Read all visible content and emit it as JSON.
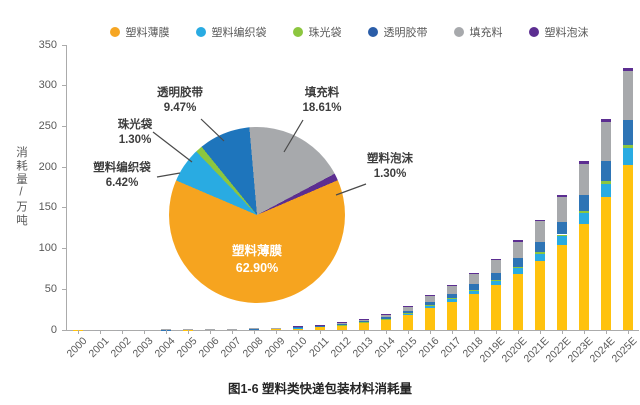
{
  "figure": {
    "caption": "图1-6 塑料类快递包装材料消耗量"
  },
  "legend": {
    "items": [
      {
        "label": "塑料薄膜",
        "color": "#F6A623"
      },
      {
        "label": "塑料编织袋",
        "color": "#29ABE2"
      },
      {
        "label": "珠光袋",
        "color": "#8CC63F"
      },
      {
        "label": "透明胶带",
        "color": "#2A5DA8"
      },
      {
        "label": "填充料",
        "color": "#A7A9AC"
      },
      {
        "label": "塑料泡沫",
        "color": "#5C2E91"
      }
    ]
  },
  "axes": {
    "y_title": "消耗量/万吨",
    "yticks": [
      0,
      50,
      100,
      150,
      200,
      250,
      300,
      350
    ]
  },
  "chart_data": [
    {
      "type": "bar",
      "stacked": true,
      "title": "塑料类快递包装材料消耗量",
      "xlabel": "",
      "ylabel": "消耗量/万吨",
      "ylim": [
        0,
        350
      ],
      "grid": false,
      "legend_position": "top",
      "categories": [
        "2000",
        "2001",
        "2002",
        "2003",
        "2004",
        "2005",
        "2006",
        "2007",
        "2008",
        "2009",
        "2010",
        "2011",
        "2012",
        "2013",
        "2014",
        "2015",
        "2016",
        "2017",
        "2018",
        "2019E",
        "2020E",
        "2021E",
        "2022E",
        "2023E",
        "2024E",
        "2025E"
      ],
      "series": [
        {
          "name": "塑料薄膜",
          "color": "#FFC20E",
          "values": [
            0.1,
            0.2,
            0.3,
            0.3,
            0.4,
            0.6,
            0.8,
            1.1,
            1.4,
            1.9,
            2.8,
            4.1,
            6.0,
            8.5,
            12.3,
            18.2,
            27.0,
            34.6,
            44.0,
            54.7,
            69.2,
            84.9,
            104.4,
            130.2,
            162.9,
            202.5
          ]
        },
        {
          "name": "塑料编织袋",
          "color": "#29ABE2",
          "values": [
            0.0,
            0.0,
            0.0,
            0.0,
            0.1,
            0.1,
            0.1,
            0.1,
            0.1,
            0.2,
            0.3,
            0.4,
            0.6,
            0.9,
            1.3,
            1.9,
            2.8,
            3.5,
            4.5,
            5.6,
            7.1,
            8.7,
            10.7,
            13.3,
            16.6,
            20.7
          ]
        },
        {
          "name": "珠光袋",
          "color": "#8CC63F",
          "values": [
            0.0,
            0.0,
            0.0,
            0.0,
            0.0,
            0.0,
            0.0,
            0.0,
            0.0,
            0.0,
            0.1,
            0.1,
            0.1,
            0.2,
            0.3,
            0.4,
            0.6,
            0.7,
            0.9,
            1.1,
            1.4,
            1.8,
            2.2,
            2.7,
            3.4,
            4.2
          ]
        },
        {
          "name": "透明胶带",
          "color": "#2E74B5",
          "values": [
            0.0,
            0.0,
            0.0,
            0.1,
            0.1,
            0.1,
            0.1,
            0.2,
            0.2,
            0.3,
            0.4,
            0.6,
            0.9,
            1.3,
            1.8,
            2.7,
            4.1,
            5.2,
            6.6,
            8.2,
            10.4,
            12.8,
            15.7,
            19.6,
            24.5,
            30.5
          ]
        },
        {
          "name": "填充料",
          "color": "#A7A9AC",
          "values": [
            0.0,
            0.1,
            0.1,
            0.1,
            0.1,
            0.2,
            0.2,
            0.3,
            0.4,
            0.6,
            0.8,
            1.2,
            1.8,
            2.5,
            3.6,
            5.4,
            8.0,
            10.2,
            13.0,
            16.2,
            20.5,
            25.1,
            30.9,
            38.5,
            48.2,
            59.9
          ]
        },
        {
          "name": "塑料泡沫",
          "color": "#5C2E91",
          "values": [
            0.0,
            0.0,
            0.0,
            0.0,
            0.0,
            0.0,
            0.0,
            0.0,
            0.0,
            0.0,
            0.1,
            0.1,
            0.1,
            0.2,
            0.3,
            0.4,
            0.6,
            0.7,
            0.9,
            1.1,
            1.4,
            1.8,
            2.2,
            2.7,
            3.4,
            4.2
          ]
        }
      ]
    },
    {
      "type": "pie",
      "title": "",
      "start_deg": 355,
      "draw_order": [
        4,
        5,
        0,
        1,
        2,
        3
      ],
      "slices": [
        {
          "label": "塑料薄膜",
          "pct": 62.9,
          "pct_label": "62.90%",
          "color": "#F6A41F"
        },
        {
          "label": "塑料编织袋",
          "pct": 6.42,
          "pct_label": "6.42%",
          "color": "#29ABE2"
        },
        {
          "label": "珠光袋",
          "pct": 1.3,
          "pct_label": "1.30%",
          "color": "#8CC63F"
        },
        {
          "label": "透明胶带",
          "pct": 9.47,
          "pct_label": "9.47%",
          "color": "#1E75BC"
        },
        {
          "label": "填充料",
          "pct": 18.61,
          "pct_label": "18.61%",
          "color": "#A7A9AC"
        },
        {
          "label": "塑料泡沫",
          "pct": 1.3,
          "pct_label": "1.30%",
          "color": "#5C2E91"
        }
      ]
    }
  ]
}
